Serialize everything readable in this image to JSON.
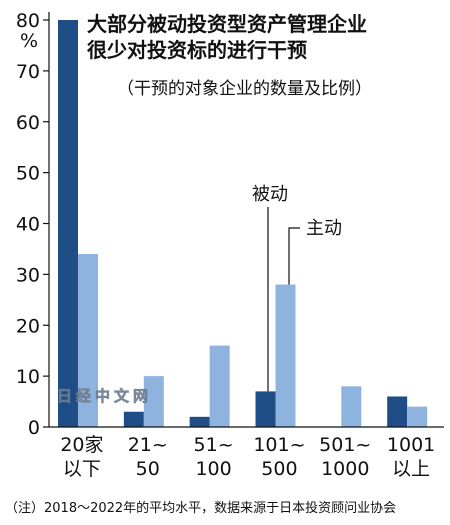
{
  "chart_data": {
    "type": "bar",
    "title": "大部分被动投资型资产管理企业\n很少对投资标的进行干预",
    "subtitle": "（干预的对象企业的数量及比例）",
    "ylabel": "%",
    "ylim": [
      0,
      80
    ],
    "yticks": [
      0,
      10,
      20,
      30,
      40,
      50,
      60,
      70,
      80
    ],
    "grid": false,
    "categories": [
      "20家\n以下",
      "21~\n50",
      "51~\n100",
      "101~\n500",
      "501~\n1000",
      "1001\n以上"
    ],
    "series": [
      {
        "name": "被动",
        "color": "#1f4e86",
        "values": [
          80,
          3,
          2,
          7,
          0,
          6
        ]
      },
      {
        "name": "主动",
        "color": "#8fb3df",
        "values": [
          34,
          10,
          16,
          28,
          8,
          4
        ]
      }
    ],
    "legend": "inline-annotation",
    "footnote": "（注）2018～2022年的平均水平，数据来源于日本投资顾问业协会",
    "watermark": "日经中文网"
  }
}
